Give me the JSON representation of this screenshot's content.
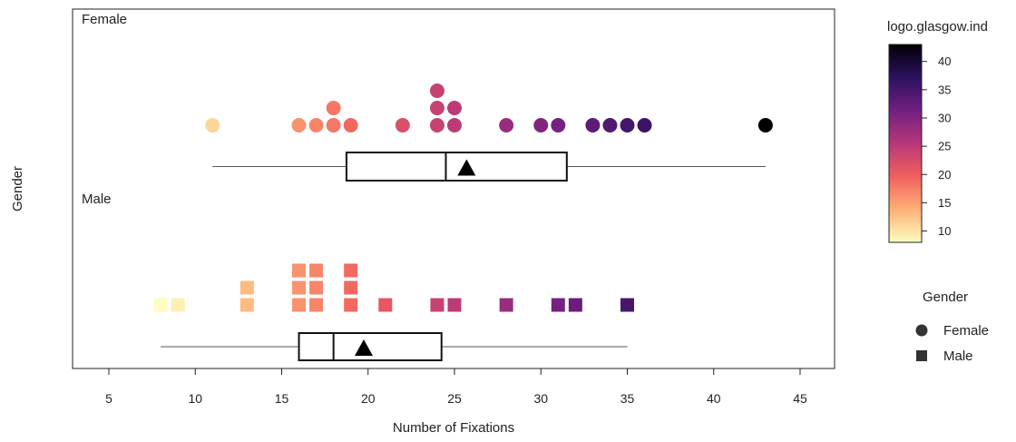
{
  "chart_data": {
    "type": "scatter",
    "title": "",
    "xlabel": "Number of Fixations",
    "ylabel": "Gender",
    "xlim": [
      3,
      47
    ],
    "xticks": [
      5,
      10,
      15,
      20,
      25,
      30,
      35,
      40,
      45
    ],
    "grid": false,
    "panels": [
      {
        "name": "Female",
        "marker": "circle",
        "values": [
          11,
          16,
          17,
          18,
          18,
          19,
          22,
          24,
          24,
          24,
          25,
          25,
          28,
          30,
          31,
          33,
          34,
          35,
          36,
          43
        ],
        "box": {
          "min": 11,
          "q1": 18.75,
          "median": 24.5,
          "q3": 31.5,
          "max": 43,
          "mean": 25.7
        }
      },
      {
        "name": "Male",
        "marker": "square",
        "values": [
          8,
          9,
          13,
          13,
          16,
          16,
          16,
          17,
          17,
          17,
          19,
          19,
          19,
          21,
          24,
          25,
          28,
          31,
          32,
          35
        ],
        "box": {
          "min": 8,
          "q1": 16,
          "median": 18,
          "q3": 24.25,
          "max": 35,
          "mean": 19.75
        }
      }
    ],
    "colorbar": {
      "title": "logo.glasgow.ind",
      "min": 8,
      "max": 43,
      "ticks": [
        10,
        15,
        20,
        25,
        30,
        35,
        40
      ],
      "colors": [
        "#fcfdbf",
        "#feb078",
        "#f1605d",
        "#b73779",
        "#721f81",
        "#2c115f",
        "#000004"
      ]
    },
    "legend": {
      "title": "Gender",
      "position": "right",
      "items": [
        {
          "label": "Female",
          "marker": "circle"
        },
        {
          "label": "Male",
          "marker": "square"
        }
      ]
    }
  }
}
